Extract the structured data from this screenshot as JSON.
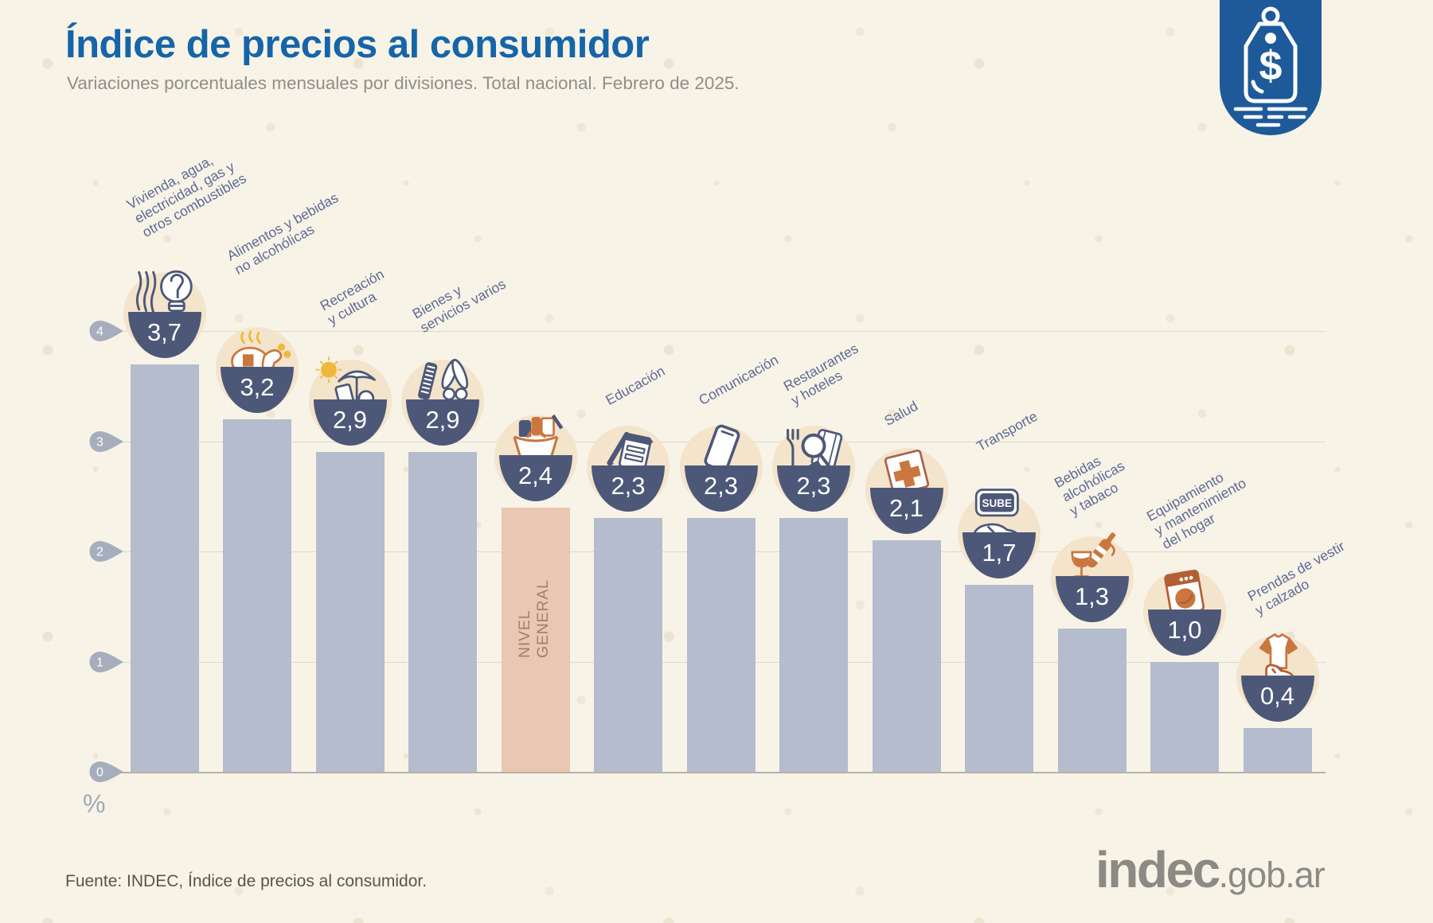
{
  "header": {
    "title": "Índice de precios al consumidor",
    "subtitle": "Variaciones porcentuales mensuales por divisiones. Total nacional. Febrero de 2025.",
    "corner_logo_icon": "price-tag-dollar"
  },
  "chart_data": {
    "type": "bar",
    "title": "Índice de precios al consumidor",
    "xlabel": "",
    "ylabel": "%",
    "ylim": [
      0,
      4
    ],
    "yticks": [
      0,
      1,
      2,
      3,
      4
    ],
    "grid": true,
    "legend": false,
    "categories": [
      "Vivienda, agua, electricidad, gas y otros combustibles",
      "Alimentos y bebidas no alcohólicas",
      "Recreación y cultura",
      "Bienes y servicios varios",
      "Nivel general",
      "Educación",
      "Comunicación",
      "Restaurantes y hoteles",
      "Salud",
      "Transporte",
      "Bebidas alcohólicas y tabaco",
      "Equipamiento y mantenimiento del hogar",
      "Prendas de vestir y calzado"
    ],
    "values": [
      3.7,
      3.2,
      2.9,
      2.9,
      2.4,
      2.3,
      2.3,
      2.3,
      2.1,
      1.7,
      1.3,
      1.0,
      0.4
    ],
    "highlight": {
      "index": 4,
      "in_bar_label": "NIVEL\nGENERAL"
    },
    "items": [
      {
        "category": "Vivienda, agua, electricidad, gas y otros combustibles",
        "label_lines": [
          "Vivienda, agua,",
          "electricidad, gas y",
          "otros combustibles"
        ],
        "value": 3.7,
        "value_label": "3,7",
        "icon": "radiator-lightbulb-icon",
        "highlighted": false
      },
      {
        "category": "Alimentos y bebidas no alcohólicas",
        "label_lines": [
          "Alimentos y bebidas",
          "no alcohólicas"
        ],
        "value": 3.2,
        "value_label": "3,2",
        "icon": "roast-chicken-icon",
        "highlighted": false
      },
      {
        "category": "Recreación y cultura",
        "label_lines": [
          "Recreación",
          "y cultura"
        ],
        "value": 2.9,
        "value_label": "2,9",
        "icon": "sun-umbrella-icon",
        "highlighted": false
      },
      {
        "category": "Bienes y servicios varios",
        "label_lines": [
          "Bienes y",
          "servicios varios"
        ],
        "value": 2.9,
        "value_label": "2,9",
        "icon": "comb-scissors-icon",
        "highlighted": false
      },
      {
        "category": "Nivel general",
        "label_lines": [],
        "value": 2.4,
        "value_label": "2,4",
        "icon": "shopping-basket-icon",
        "highlighted": true
      },
      {
        "category": "Educación",
        "label_lines": [
          "Educación"
        ],
        "value": 2.3,
        "value_label": "2,3",
        "icon": "notebook-pencil-icon",
        "highlighted": false
      },
      {
        "category": "Comunicación",
        "label_lines": [
          "Comunicación"
        ],
        "value": 2.3,
        "value_label": "2,3",
        "icon": "smartphone-icon",
        "highlighted": false
      },
      {
        "category": "Restaurantes y hoteles",
        "label_lines": [
          "Restaurantes",
          "y hoteles"
        ],
        "value": 2.3,
        "value_label": "2,3",
        "icon": "fork-magnifier-suitcase-icon",
        "highlighted": false
      },
      {
        "category": "Salud",
        "label_lines": [
          "Salud"
        ],
        "value": 2.1,
        "value_label": "2,1",
        "icon": "first-aid-kit-icon",
        "highlighted": false
      },
      {
        "category": "Transporte",
        "label_lines": [
          "Transporte"
        ],
        "value": 1.7,
        "value_label": "1,7",
        "icon": "sube-card-car-icon",
        "highlighted": false
      },
      {
        "category": "Bebidas alcohólicas y tabaco",
        "label_lines": [
          "Bebidas",
          "alcohólicas",
          "y tabaco"
        ],
        "value": 1.3,
        "value_label": "1,3",
        "icon": "bottle-wineglass-icon",
        "highlighted": false
      },
      {
        "category": "Equipamiento y mantenimiento del hogar",
        "label_lines": [
          "Equipamiento",
          "y mantenimiento",
          "del hogar"
        ],
        "value": 1.0,
        "value_label": "1,0",
        "icon": "washing-machine-icon",
        "highlighted": false
      },
      {
        "category": "Prendas de vestir y calzado",
        "label_lines": [
          "Prendas de vestir",
          "y calzado"
        ],
        "value": 0.4,
        "value_label": "0,4",
        "icon": "tshirt-sneaker-icon",
        "highlighted": false
      }
    ]
  },
  "footer": {
    "source": "Fuente: INDEC, Índice de precios al consumidor.",
    "brand": "indec",
    "brand_suffix": ".gob.ar"
  },
  "colors": {
    "background": "#f8f3e7",
    "bar": "#b4bcce",
    "bar_highlight": "#eac7b2",
    "badge_bowl": "#4d5878",
    "badge_disc": "#f3e4cb",
    "title_blue": "#1565a8",
    "category_label": "#5d6a94",
    "accent_orange": "#c9763f",
    "accent_yellow": "#f0b73a",
    "corner_logo_blue": "#1e5a99",
    "in_bar_label_color": "#a57d6b"
  }
}
